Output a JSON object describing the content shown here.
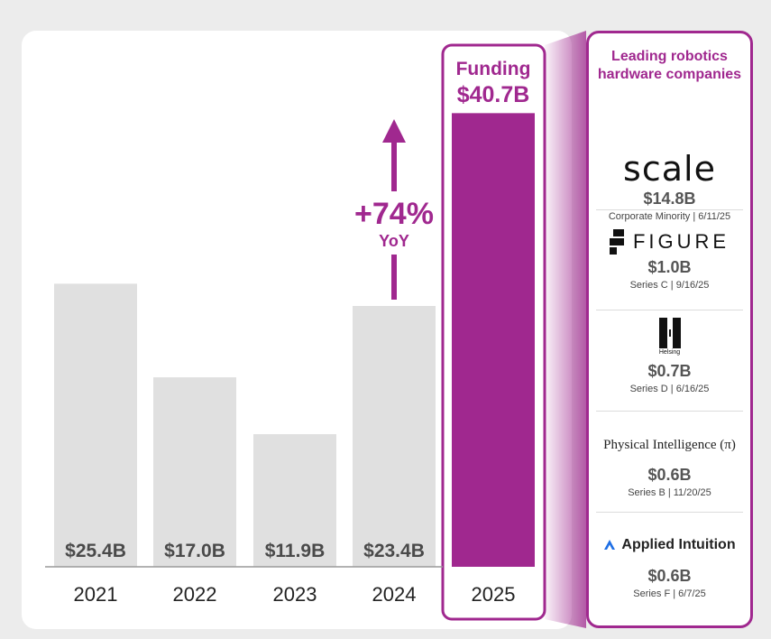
{
  "chart_data": {
    "type": "bar",
    "categories": [
      "2021",
      "2022",
      "2023",
      "2024",
      "2025"
    ],
    "values": [
      25.4,
      17.0,
      11.9,
      23.4,
      40.7
    ],
    "bar_labels": [
      "$25.4B",
      "$17.0B",
      "$11.9B",
      "$23.4B",
      "$40.7B"
    ],
    "highlight": {
      "category": "2025",
      "title": "Funding",
      "value_label": "$40.7B"
    },
    "annotation": {
      "change": "+74%",
      "sub": "YoY"
    },
    "ylim": [
      0,
      45
    ],
    "grid": false,
    "colors": {
      "bar": "#e0e0e0",
      "highlight": "#a0288f",
      "label": "#4a4a4a",
      "axis": "#999999"
    }
  },
  "panel": {
    "title": "Leading robotics hardware companies",
    "companies": [
      {
        "logo": "scale",
        "logo_text": "scale",
        "amount": "$14.8B",
        "detail": "Corporate Minority  |  6/11/25"
      },
      {
        "logo": "figure-icon",
        "logo_text": "FIGURE",
        "amount": "$1.0B",
        "detail": "Series C  |  9/16/25"
      },
      {
        "logo": "helsing-icon",
        "logo_text": "Helsing",
        "amount": "$0.7B",
        "detail": "Series D  |  6/16/25"
      },
      {
        "logo": "physical-intelligence",
        "logo_text": "Physical Intelligence (π)",
        "amount": "$0.6B",
        "detail": "Series B  |  11/20/25"
      },
      {
        "logo": "applied-intuition-icon",
        "logo_text": "Applied Intuition",
        "amount": "$0.6B",
        "detail": "Series F  |  6/7/25"
      }
    ]
  }
}
